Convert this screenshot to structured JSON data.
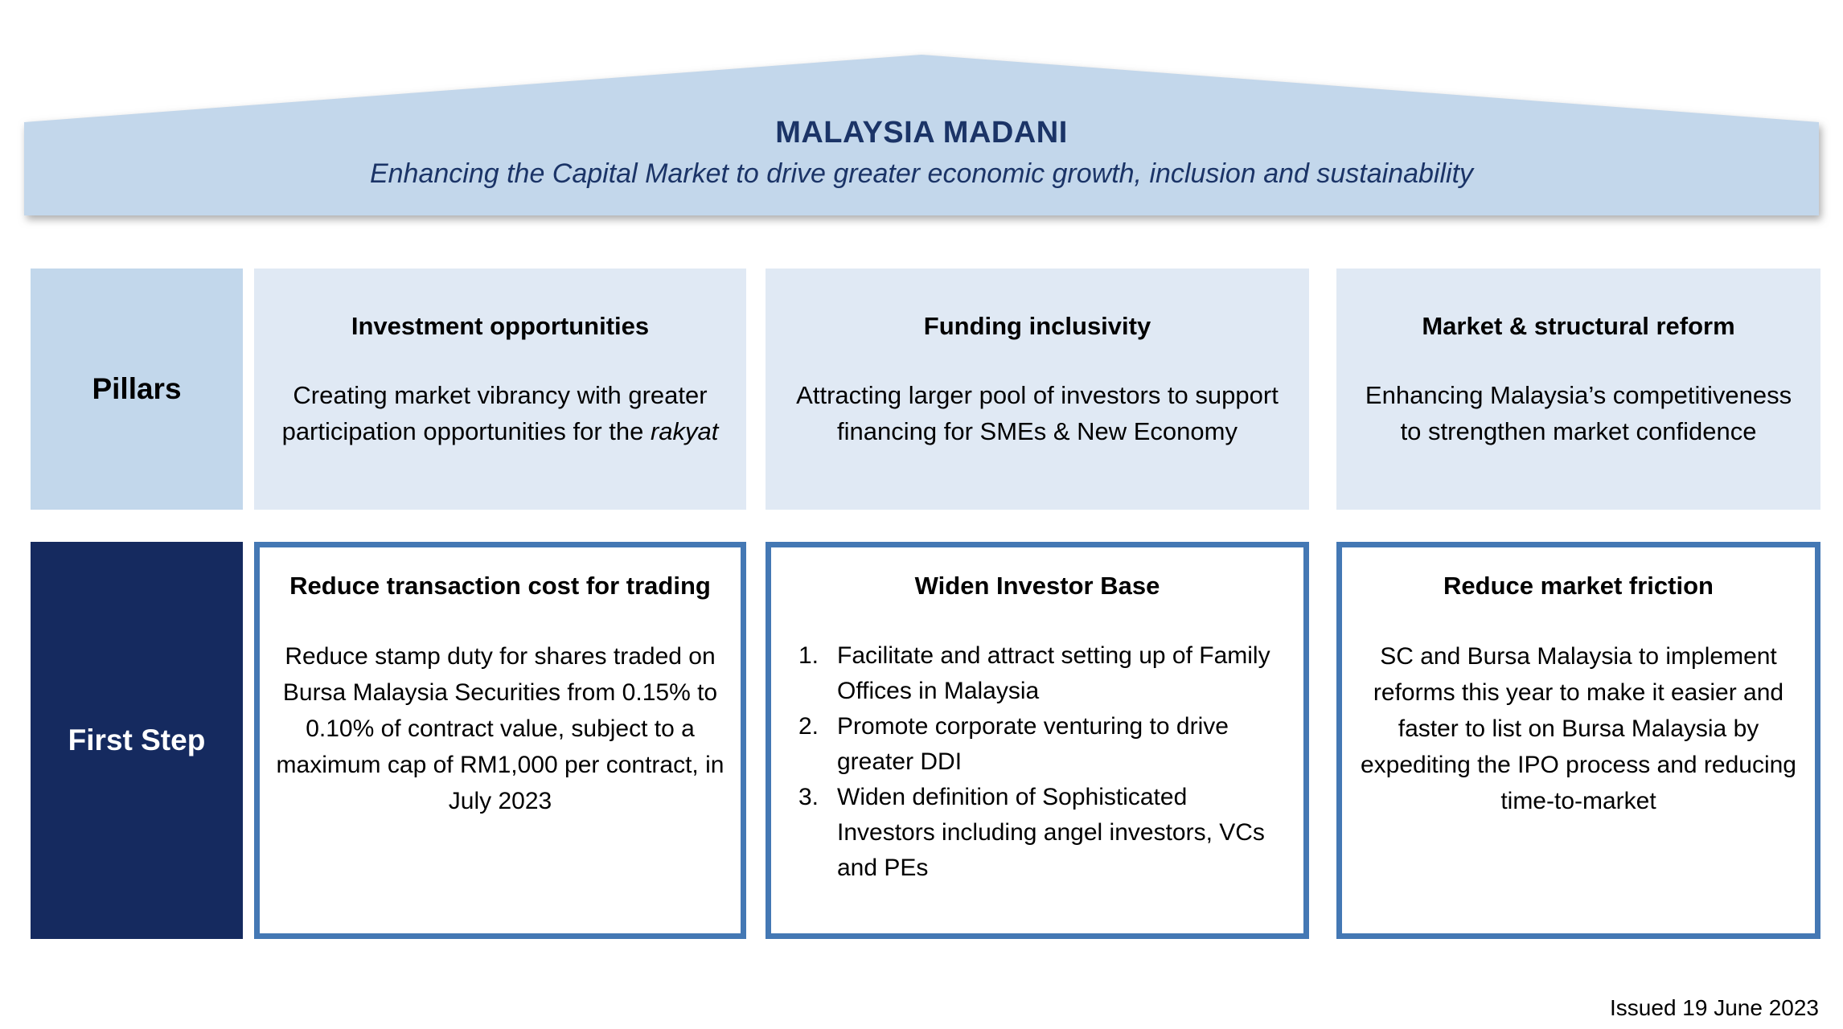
{
  "banner": {
    "title": "MALAYSIA MADANI",
    "subtitle": "Enhancing the Capital Market to drive greater economic growth, inclusion and sustainability"
  },
  "pillars": {
    "row_label": "Pillars",
    "items": [
      {
        "title": "Investment opportunities",
        "body": "Creating market vibrancy with greater participation opportunities for the",
        "body_italic": "rakyat"
      },
      {
        "title": "Funding inclusivity",
        "body": "Attracting larger pool of investors to support financing for SMEs & New Economy"
      },
      {
        "title": "Market & structural reform",
        "body": "Enhancing Malaysia’s competitiveness to strengthen market confidence"
      }
    ]
  },
  "first_step": {
    "row_label": "First Step",
    "boxes": [
      {
        "title": "Reduce transaction cost for trading",
        "body": "Reduce stamp duty for shares traded on Bursa Malaysia Securities from 0.15% to 0.10% of contract value, subject to a maximum cap of RM1,000 per contract, in July 2023"
      },
      {
        "title": "Widen Investor Base",
        "items": [
          {
            "num": "1.",
            "text": "Facilitate and attract setting up of Family Offices in Malaysia"
          },
          {
            "num": "2.",
            "text": "Promote corporate venturing to drive greater DDI"
          },
          {
            "num": "3.",
            "text": "Widen definition of Sophisticated Investors including angel investors, VCs and PEs"
          }
        ]
      },
      {
        "title": "Reduce market friction",
        "body": "SC and Bursa Malaysia to implement reforms this year to make it easier and faster to list on Bursa Malaysia by expediting the IPO process and reducing time-to-market"
      }
    ]
  },
  "footer": {
    "issued": "Issued 19 June 2023"
  },
  "colors": {
    "banner_fill": "#c3d7eb",
    "pillar_label_fill": "#c2d7eb",
    "pillar_box_fill": "#e0e9f4",
    "first_step_label_fill": "#152a5f",
    "first_step_border": "#4478b4",
    "title_text": "#1b3467"
  }
}
